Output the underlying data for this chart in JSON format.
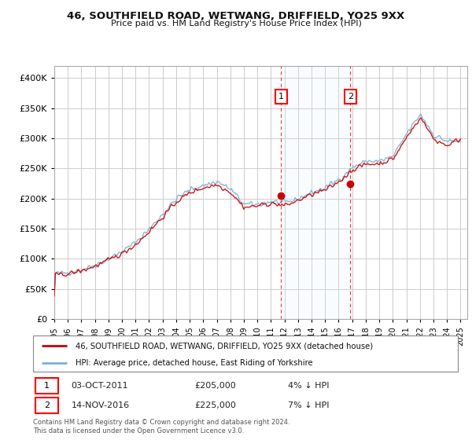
{
  "title": "46, SOUTHFIELD ROAD, WETWANG, DRIFFIELD, YO25 9XX",
  "subtitle": "Price paid vs. HM Land Registry's House Price Index (HPI)",
  "legend_line1": "46, SOUTHFIELD ROAD, WETWANG, DRIFFIELD, YO25 9XX (detached house)",
  "legend_line2": "HPI: Average price, detached house, East Riding of Yorkshire",
  "footnote": "Contains HM Land Registry data © Crown copyright and database right 2024.\nThis data is licensed under the Open Government Licence v3.0.",
  "hpi_color": "#7ab0d8",
  "price_color": "#cc0000",
  "marker_color": "#cc0000",
  "shade_color": "#ddeeff",
  "background_color": "#ffffff",
  "grid_color": "#cccccc",
  "ylim": [
    0,
    420000
  ],
  "yticks": [
    0,
    50000,
    100000,
    150000,
    200000,
    250000,
    300000,
    350000,
    400000
  ],
  "x_start_year": 1995.0,
  "x_end_year": 2025.5,
  "transaction1_year": 2011.75,
  "transaction1_price": 205000,
  "transaction2_year": 2016.87,
  "transaction2_price": 225000,
  "seed": 42,
  "base_values_yearly": {
    "years": [
      1995,
      1996,
      1997,
      1998,
      1999,
      2000,
      2001,
      2002,
      2003,
      2004,
      2005,
      2006,
      2007,
      2008,
      2009,
      2010,
      2011,
      2012,
      2013,
      2014,
      2015,
      2016,
      2017,
      2018,
      2019,
      2020,
      2021,
      2022,
      2023,
      2024,
      2025
    ],
    "hpi": [
      75000,
      77000,
      82000,
      90000,
      100000,
      112000,
      128000,
      150000,
      175000,
      200000,
      215000,
      222000,
      228000,
      215000,
      190000,
      190000,
      195000,
      192000,
      200000,
      210000,
      218000,
      232000,
      252000,
      262000,
      262000,
      270000,
      308000,
      340000,
      305000,
      295000,
      295000
    ],
    "price": [
      73000,
      75000,
      80000,
      88000,
      98000,
      109000,
      124000,
      146000,
      170000,
      195000,
      210000,
      218000,
      223000,
      210000,
      185000,
      188000,
      192000,
      188000,
      197000,
      207000,
      214000,
      228000,
      248000,
      257000,
      258000,
      266000,
      302000,
      335000,
      298000,
      288000,
      300000
    ]
  }
}
